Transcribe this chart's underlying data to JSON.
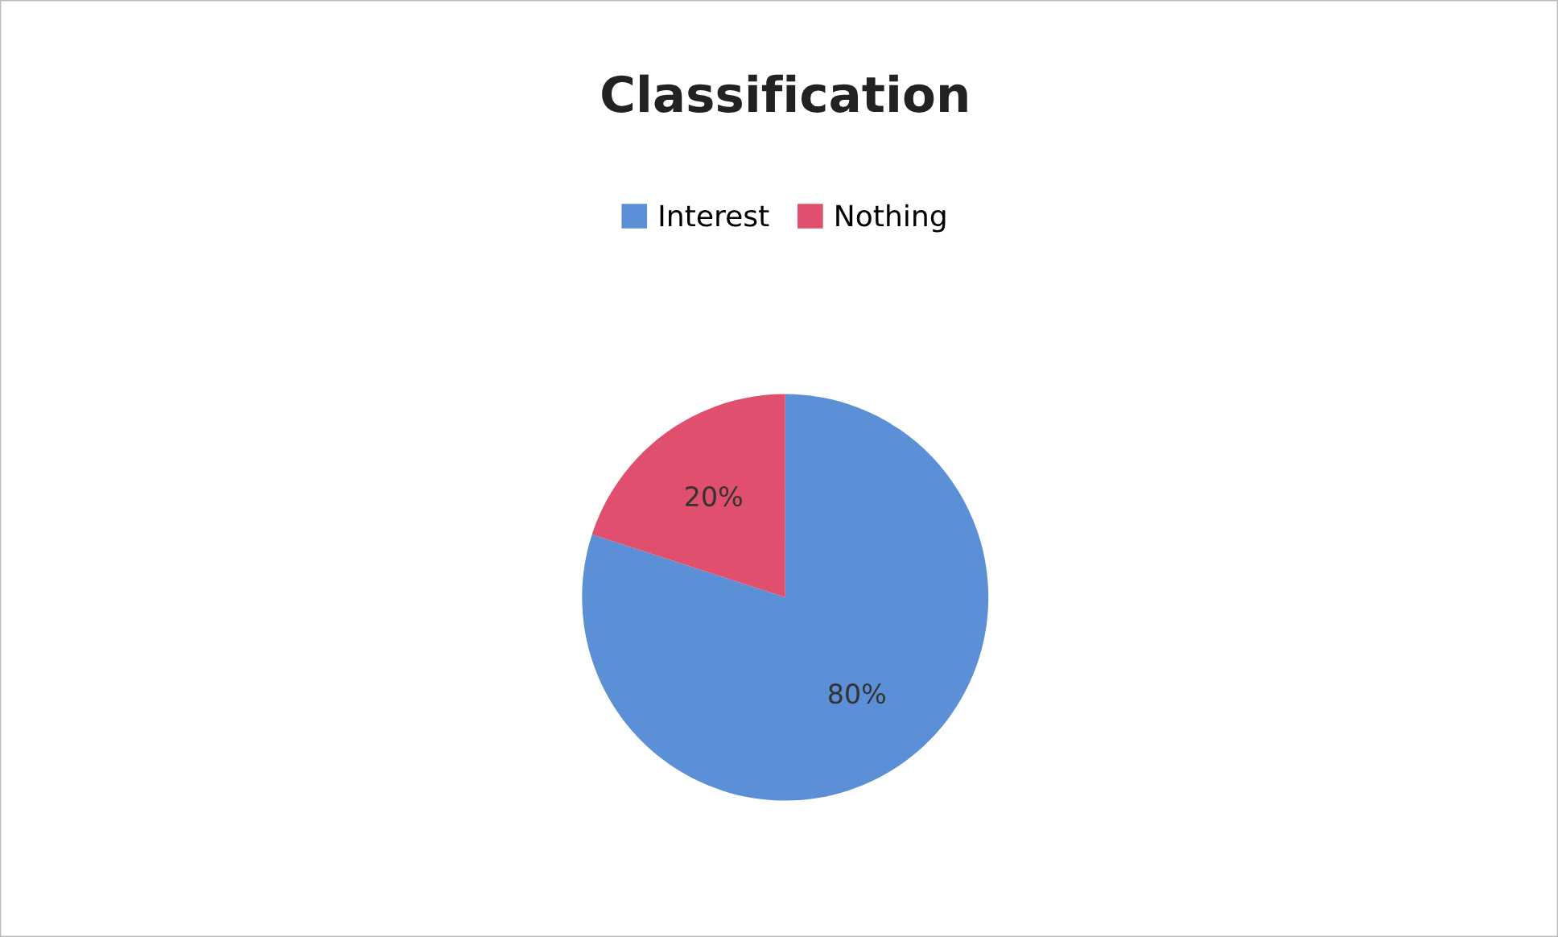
{
  "chart_data": {
    "type": "pie",
    "title": "Classification",
    "categories": [
      "Interest",
      "Nothing"
    ],
    "values": [
      80,
      20
    ],
    "colors": [
      "#5b8fd6",
      "#e0506e"
    ],
    "value_labels": [
      "80%",
      "20%"
    ],
    "legend": "top"
  }
}
